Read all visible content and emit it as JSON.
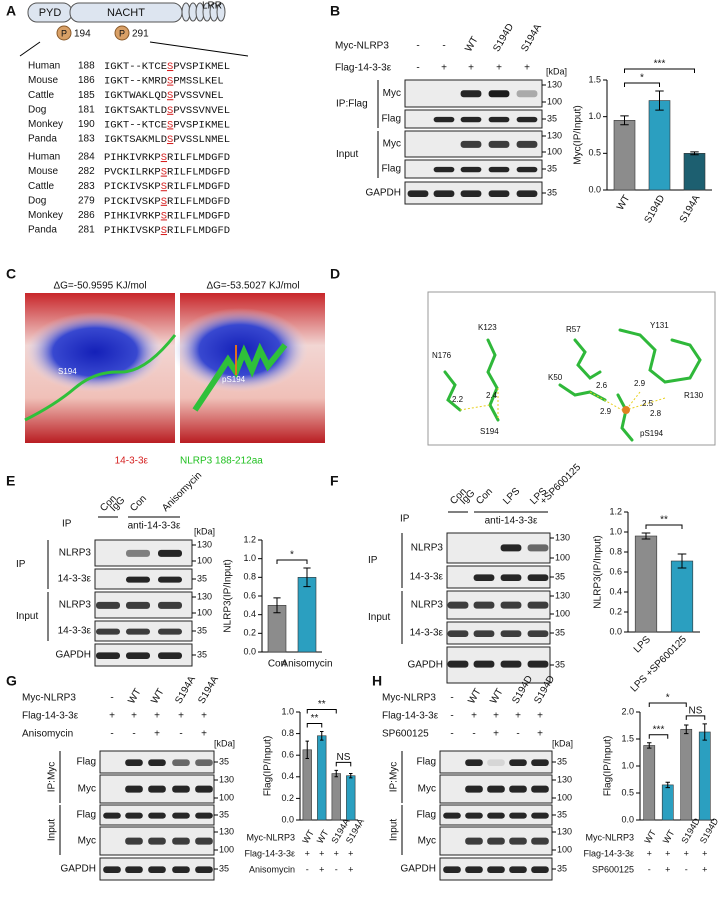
{
  "panels": {
    "A": {
      "label": "A",
      "domains": [
        "PYD",
        "NACHT",
        "LRR"
      ],
      "sites": [
        {
          "mark": "P",
          "position": 194
        },
        {
          "mark": "P",
          "position": 291
        }
      ],
      "alignments": [
        [
          {
            "species": "Human",
            "start": 188,
            "seq": [
              "IGKT--KTCE",
              "S",
              "PVSPIKMEL"
            ]
          },
          {
            "species": "Mouse",
            "start": 186,
            "seq": [
              "IGKT--KMRD",
              "S",
              "PMSSLKEL"
            ]
          },
          {
            "species": "Cattle",
            "start": 185,
            "seq": [
              "IGKTWAKLQD",
              "S",
              "PVSSVNEL"
            ]
          },
          {
            "species": "Dog",
            "start": 181,
            "seq": [
              "IGKTSAKTLD",
              "S",
              "PVSSVNVEL"
            ]
          },
          {
            "species": "Monkey",
            "start": 190,
            "seq": [
              "IGKT--KTCE",
              "S",
              "PVSPIKMEL"
            ]
          },
          {
            "species": "Panda",
            "start": 183,
            "seq": [
              "IGKTSAKMLD",
              "S",
              "PVSSLNMEL"
            ]
          }
        ],
        [
          {
            "species": "Human",
            "start": 284,
            "seq": [
              "PIHKIVRKP",
              "S",
              "RILFLMDGFD"
            ]
          },
          {
            "species": "Mouse",
            "start": 282,
            "seq": [
              "PVCKILRKP",
              "S",
              "RILFLMDGFD"
            ]
          },
          {
            "species": "Cattle",
            "start": 283,
            "seq": [
              "PICKIVSKP",
              "S",
              "RILFLMDGFD"
            ]
          },
          {
            "species": "Dog",
            "start": 279,
            "seq": [
              "PICKIVSKP",
              "S",
              "RILFLMDGFD"
            ]
          },
          {
            "species": "Monkey",
            "start": 286,
            "seq": [
              "PIHKIVRKP",
              "S",
              "RILFLMDGFD"
            ]
          },
          {
            "species": "Panda",
            "start": 281,
            "seq": [
              "PIHKIVSKP",
              "S",
              "RILFLMDGFD"
            ]
          }
        ]
      ]
    },
    "B": {
      "label": "B",
      "conditions": [
        {
          "name": "Myc-NLRP3",
          "lanes": [
            "-",
            "-",
            "WT",
            "S194D",
            "S194A"
          ]
        },
        {
          "name": "Flag-14-3-3ε",
          "lanes": [
            "-",
            "+",
            "+",
            "+",
            "+"
          ]
        }
      ],
      "kda": "[kDa]",
      "groups": [
        {
          "name": "IP:Flag",
          "blots": [
            {
              "name": "Myc",
              "markers": [
                130,
                100
              ]
            },
            {
              "name": "Flag",
              "markers": [
                35
              ]
            }
          ]
        },
        {
          "name": "Input",
          "blots": [
            {
              "name": "Myc",
              "markers": [
                130,
                100
              ]
            },
            {
              "name": "Flag",
              "markers": [
                35
              ]
            }
          ]
        }
      ],
      "loading": {
        "name": "GAPDH",
        "markers": [
          35
        ]
      }
    },
    "C": {
      "label": "C",
      "energies": [
        "ΔG=-50.9595 KJ/mol",
        "ΔG=-53.5027 KJ/mol"
      ],
      "sites": [
        "S194",
        "pS194"
      ],
      "legend": [
        "14-3-3ε",
        "NLRP3 188-212aa"
      ]
    },
    "D": {
      "label": "D",
      "residues": [
        "K123",
        "N176",
        "R57",
        "Y131",
        "K50",
        "R130",
        "S194",
        "pS194"
      ],
      "distances": [
        2.2,
        2.4,
        2.6,
        2.9,
        2.5,
        2.9,
        2.8
      ]
    },
    "E": {
      "label": "E",
      "ip": "IP",
      "lanes": [
        [
          "Con",
          "IgG"
        ],
        [
          "Con"
        ],
        [
          "Anisomycin"
        ]
      ],
      "antibody": "anti-14-3-3ε",
      "kda": "[kDa]",
      "groups": [
        {
          "name": "IP",
          "blots": [
            {
              "name": "NLRP3",
              "markers": [
                130,
                100
              ]
            },
            {
              "name": "14-3-3ε",
              "markers": [
                35
              ]
            }
          ]
        },
        {
          "name": "Input",
          "blots": [
            {
              "name": "NLRP3",
              "markers": [
                130,
                100
              ]
            },
            {
              "name": "14-3-3ε",
              "markers": [
                35
              ]
            }
          ]
        }
      ],
      "loading": {
        "name": "GAPDH",
        "markers": [
          35
        ]
      }
    },
    "F": {
      "label": "F",
      "ip": "IP",
      "lanes": [
        [
          "Con",
          "IgG"
        ],
        [
          "Con"
        ],
        [
          "LPS"
        ],
        [
          "LPS",
          "+SP600125"
        ]
      ],
      "antibody": "anti-14-3-3ε",
      "groups": [
        {
          "name": "IP",
          "blots": [
            {
              "name": "NLRP3",
              "markers": [
                130,
                100
              ]
            },
            {
              "name": "14-3-3ε",
              "markers": [
                35
              ]
            }
          ]
        },
        {
          "name": "Input",
          "blots": [
            {
              "name": "NLRP3",
              "markers": [
                130,
                100
              ]
            },
            {
              "name": "14-3-3ε",
              "markers": [
                35
              ]
            }
          ]
        }
      ],
      "loading": {
        "name": "GAPDH",
        "markers": [
          35
        ]
      }
    },
    "G": {
      "label": "G",
      "conditions": [
        {
          "name": "Myc-NLRP3",
          "lanes": [
            "-",
            "WT",
            "WT",
            "S194A",
            "S194A"
          ]
        },
        {
          "name": "Flag-14-3-3ε",
          "lanes": [
            "+",
            "+",
            "+",
            "+",
            "+"
          ]
        },
        {
          "name": "Anisomycin",
          "lanes": [
            "-",
            "-",
            "+",
            "-",
            "+"
          ]
        }
      ],
      "kda": "[kDa]",
      "groups": [
        {
          "name": "IP:Myc",
          "blots": [
            {
              "name": "Flag",
              "markers": [
                35
              ]
            },
            {
              "name": "Myc",
              "markers": [
                130,
                100
              ]
            }
          ]
        },
        {
          "name": "Input",
          "blots": [
            {
              "name": "Flag",
              "markers": [
                35
              ]
            },
            {
              "name": "Myc",
              "markers": [
                130,
                100
              ]
            }
          ]
        }
      ],
      "loading": {
        "name": "GAPDH",
        "markers": [
          35
        ]
      }
    },
    "H": {
      "label": "H",
      "conditions": [
        {
          "name": "Myc-NLRP3",
          "lanes": [
            "-",
            "WT",
            "WT",
            "S194D",
            "S194D"
          ]
        },
        {
          "name": "Flag-14-3-3ε",
          "lanes": [
            "-",
            "+",
            "+",
            "+",
            "+"
          ]
        },
        {
          "name": "SP600125",
          "lanes": [
            "-",
            "-",
            "+",
            "-",
            "+"
          ]
        }
      ],
      "kda": "[kDa]",
      "groups": [
        {
          "name": "IP:Myc",
          "blots": [
            {
              "name": "Flag",
              "markers": [
                35
              ]
            },
            {
              "name": "Myc",
              "markers": [
                130,
                100
              ]
            }
          ]
        },
        {
          "name": "Input",
          "blots": [
            {
              "name": "Flag",
              "markers": [
                35
              ]
            },
            {
              "name": "Myc",
              "markers": [
                130,
                100
              ]
            }
          ]
        }
      ],
      "loading": {
        "name": "GAPDH",
        "markers": [
          35
        ]
      }
    }
  },
  "chart_data": [
    {
      "type": "bar",
      "ylabel": "Myc(IP/Input)",
      "categories": [
        "WT",
        "S194D",
        "S194A"
      ],
      "values": [
        0.95,
        1.22,
        0.5
      ],
      "errors": [
        0.06,
        0.13,
        0.02
      ],
      "colors": [
        "#8c8c8c",
        "#2b9fc0",
        "#1d5f70"
      ],
      "ylim": [
        0,
        1.5
      ],
      "yticks": [
        {
          "value": 0,
          "label": "0.0"
        },
        0.5,
        {
          "value": 1,
          "label": "1.0"
        },
        1.5
      ],
      "annotations": [
        "*",
        "***"
      ]
    },
    {
      "type": "bar",
      "ylabel": "NLRP3(IP/Input)",
      "categories": [
        "Con",
        "Anisomycin"
      ],
      "values": [
        0.5,
        0.8
      ],
      "errors": [
        0.08,
        0.1
      ],
      "colors": [
        "#8c8c8c",
        "#2b9fc0"
      ],
      "ylim": [
        0,
        1.2
      ],
      "yticks": [
        {
          "value": 0,
          "label": "0.0"
        },
        0.2,
        0.4,
        0.6,
        0.8,
        {
          "value": 1,
          "label": "1.0"
        },
        1.2
      ],
      "annotations": [
        "*"
      ]
    },
    {
      "type": "bar",
      "ylabel": "NLRP3(IP/Input)",
      "categories": [
        "LPS",
        "LPS +SP600125"
      ],
      "values": [
        0.96,
        0.71
      ],
      "errors": [
        0.03,
        0.07
      ],
      "colors": [
        "#8c8c8c",
        "#2b9fc0"
      ],
      "ylim": [
        0,
        1.2
      ],
      "yticks": [
        {
          "value": 0,
          "label": "0.0"
        },
        0.2,
        0.4,
        0.6,
        0.8,
        {
          "value": 1,
          "label": "1.0"
        },
        1.2
      ],
      "annotations": [
        "**"
      ]
    },
    {
      "type": "bar",
      "ylabel": "Flag(IP/Input)",
      "categories": [
        null,
        null,
        null,
        null
      ],
      "values": [
        0.65,
        0.78,
        0.43,
        0.41
      ],
      "errors": [
        0.08,
        0.04,
        0.03,
        0.02
      ],
      "colors": [
        "#8c8c8c",
        "#2b9fc0",
        "#8c8c8c",
        "#2b9fc0"
      ],
      "ylim": [
        0,
        1
      ],
      "yticks": [
        {
          "value": 0,
          "label": "0.0"
        },
        0.2,
        0.4,
        0.6,
        0.8,
        {
          "value": 1,
          "label": "1.0"
        }
      ],
      "condition_rows": [
        {
          "name": "Myc-NLRP3",
          "values": [
            "WT",
            "WT",
            "S194A",
            "S194A"
          ]
        },
        {
          "name": "Flag-14-3-3ε",
          "values": [
            "+",
            "+",
            "+",
            "+"
          ]
        },
        {
          "name": "Anisomycin",
          "values": [
            "-",
            "+",
            "-",
            "+"
          ]
        }
      ],
      "annotations": [
        "**",
        "**",
        "NS"
      ]
    },
    {
      "type": "bar",
      "ylabel": "Flag(IP/Input)",
      "categories": [
        null,
        null,
        null,
        null
      ],
      "values": [
        1.38,
        0.65,
        1.68,
        1.63
      ],
      "errors": [
        0.05,
        0.05,
        0.08,
        0.15
      ],
      "colors": [
        "#8c8c8c",
        "#2b9fc0",
        "#8c8c8c",
        "#2b9fc0"
      ],
      "ylim": [
        0,
        2
      ],
      "yticks": [
        {
          "value": 0,
          "label": "0.0"
        },
        0.5,
        {
          "value": 1,
          "label": "1.0"
        },
        1.5,
        {
          "value": 2,
          "label": "2.0"
        }
      ],
      "condition_rows": [
        {
          "name": "Myc-NLRP3",
          "values": [
            "WT",
            "WT",
            "S194D",
            "S194D"
          ]
        },
        {
          "name": "Flag-14-3-3ε",
          "values": [
            "+",
            "+",
            "+",
            "+"
          ]
        },
        {
          "name": "SP600125",
          "values": [
            "-",
            "+",
            "-",
            "+"
          ]
        }
      ],
      "annotations": [
        "***",
        "*",
        "NS"
      ]
    }
  ]
}
